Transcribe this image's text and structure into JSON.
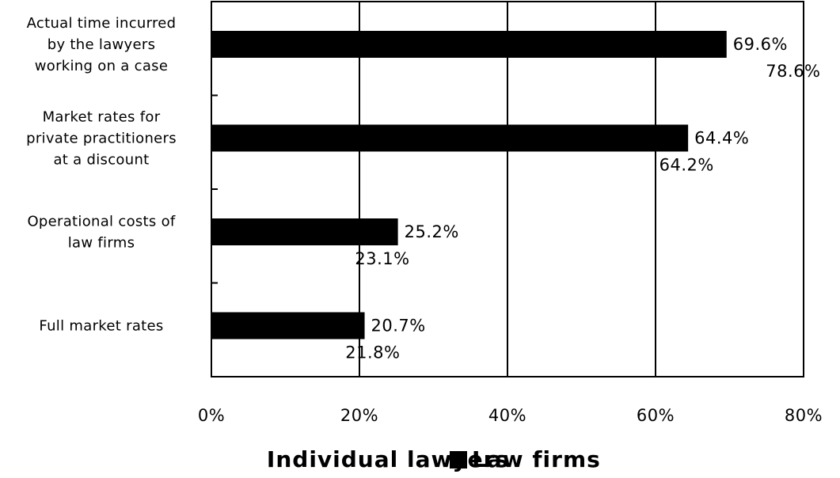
{
  "chart_data": {
    "type": "bar",
    "orientation": "horizontal",
    "categories": [
      [
        "Actual time incurred",
        "by the lawyers",
        "working on a case"
      ],
      [
        "Market rates for",
        "private practitioners",
        "at a discount"
      ],
      [
        "Operational costs of",
        "law firms"
      ],
      [
        "Full market rates"
      ]
    ],
    "series": [
      {
        "name": "Individual lawyers",
        "values": [
          78.6,
          64.2,
          23.1,
          21.8
        ],
        "labels": [
          "78.6%",
          "64.2%",
          "23.1%",
          "21.8%"
        ],
        "color": "#ffffff"
      },
      {
        "name": "Law firms",
        "values": [
          69.6,
          64.4,
          25.2,
          20.7
        ],
        "labels": [
          "69.6%",
          "64.4%",
          "25.2%",
          "20.7%"
        ],
        "color": "#000000"
      }
    ],
    "xlim": [
      0,
      80
    ],
    "xticks": [
      "0%",
      "20%",
      "40%",
      "60%",
      "80%"
    ],
    "grid": "vertical",
    "legend": "bottom",
    "title": "",
    "xlabel": "",
    "ylabel": ""
  }
}
